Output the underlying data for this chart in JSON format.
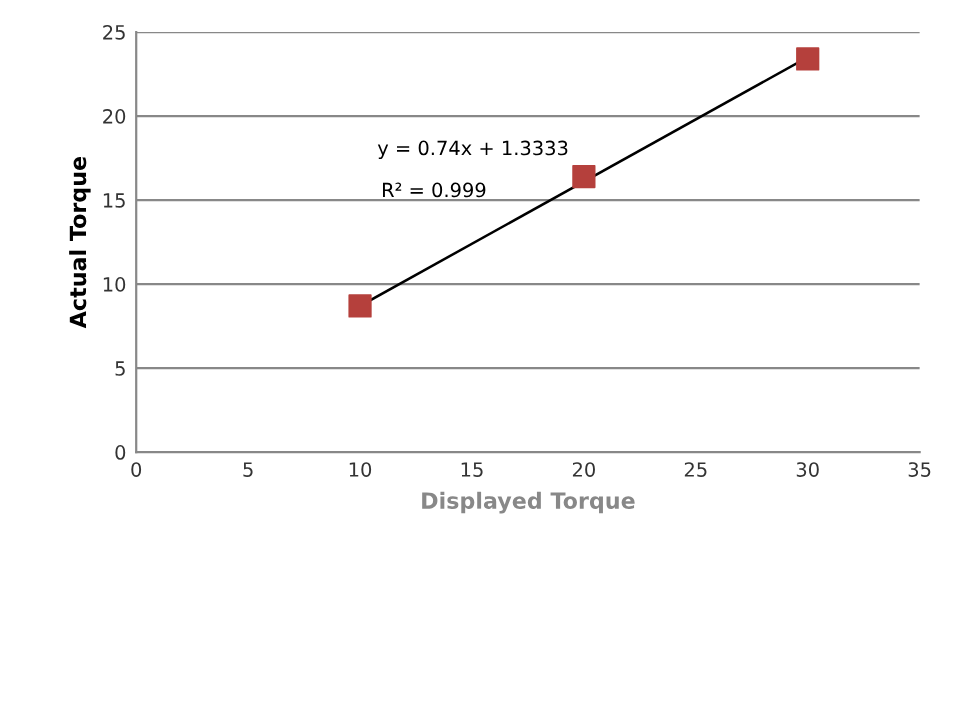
{
  "chart_data": {
    "type": "scatter",
    "xlabel": "Displayed Torque",
    "ylabel": "Actual Torque",
    "xlim": [
      0,
      35
    ],
    "xticks": [
      0,
      5,
      10,
      15,
      20,
      25,
      30,
      35
    ],
    "ylim": [
      0,
      25
    ],
    "yticks": [
      0,
      5,
      10,
      15,
      20,
      25
    ],
    "grid": "y",
    "marker": "square",
    "series": [
      {
        "color": "#b5403c",
        "x": [
          10,
          20,
          30
        ],
        "values": [
          8.7,
          16.4,
          23.4
        ]
      },
      {
        "type": "line",
        "color": "#000000",
        "x": [
          10,
          30
        ],
        "values": [
          8.7,
          23.5
        ],
        "marker": "none",
        "line_style": "solid"
      }
    ],
    "annotations": [
      "y = 0.74x + 1.3333",
      "R² = 0.999"
    ]
  }
}
